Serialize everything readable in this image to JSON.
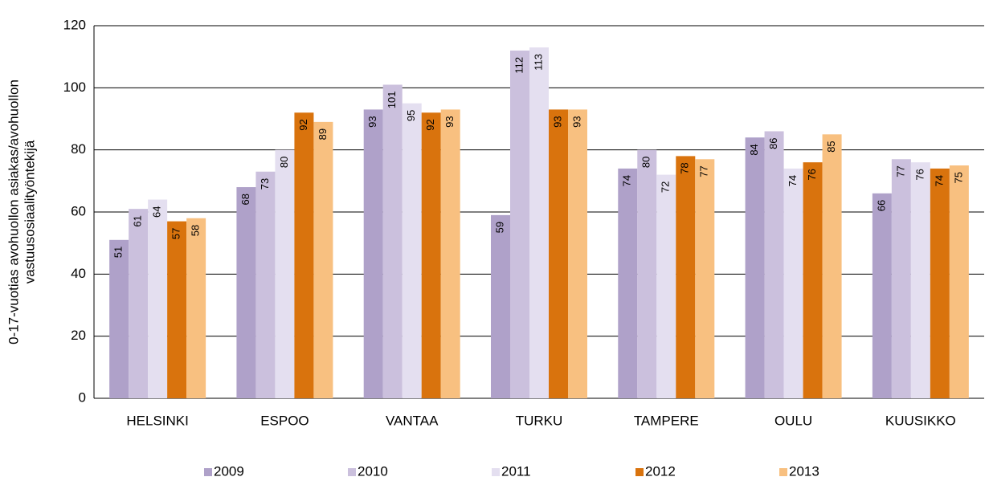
{
  "chart_data": {
    "type": "bar",
    "ylabel": [
      "0-17-vuotias avohuollon asiakas/avohuollon",
      "vastuusosiaalityöntekijä"
    ],
    "categories": [
      "HELSINKI",
      "ESPOO",
      "VANTAA",
      "TURKU",
      "TAMPERE",
      "OULU",
      "KUUSIKKO"
    ],
    "series": [
      {
        "name": "2009",
        "color": "#afa1c9",
        "values": [
          51,
          68,
          93,
          59,
          74,
          84,
          66
        ]
      },
      {
        "name": "2010",
        "color": "#cbc0dd",
        "values": [
          61,
          73,
          101,
          112,
          80,
          86,
          77
        ]
      },
      {
        "name": "2011",
        "color": "#e4dff0",
        "values": [
          64,
          80,
          95,
          113,
          72,
          74,
          76
        ]
      },
      {
        "name": "2012",
        "color": "#d9730d",
        "values": [
          57,
          92,
          92,
          93,
          78,
          76,
          74
        ]
      },
      {
        "name": "2013",
        "color": "#f8c080",
        "values": [
          58,
          89,
          93,
          93,
          77,
          85,
          75
        ]
      }
    ],
    "ylim": [
      0,
      120
    ],
    "yticks": [
      0,
      20,
      40,
      60,
      80,
      100,
      120
    ],
    "grid": true
  }
}
